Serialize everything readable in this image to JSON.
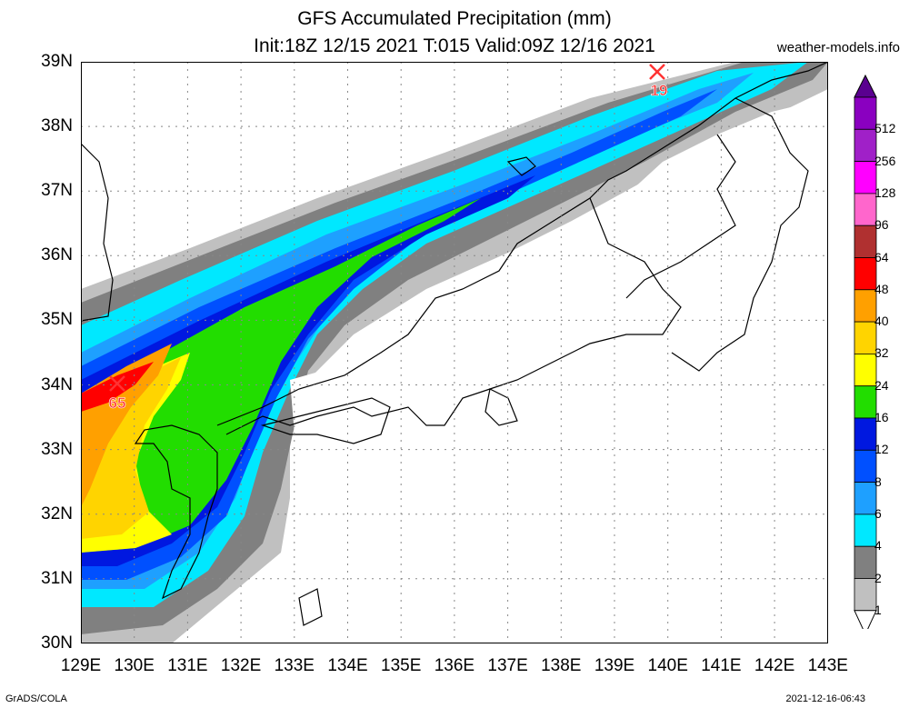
{
  "header": {
    "title_line1": "GFS Accumulated Precipitation (mm)",
    "title_line2": "Init:18Z 12/15 2021 T:015 Valid:09Z 12/16 2021",
    "site": "weather-models.info"
  },
  "map": {
    "lat_labels": [
      "39N",
      "38N",
      "37N",
      "36N",
      "35N",
      "34N",
      "33N",
      "32N",
      "31N",
      "30N"
    ],
    "lon_labels": [
      "129E",
      "130E",
      "131E",
      "132E",
      "133E",
      "134E",
      "135E",
      "136E",
      "137E",
      "138E",
      "139E",
      "140E",
      "141E",
      "142E",
      "143E"
    ],
    "markers": [
      {
        "label": "65",
        "color": "#ff3333"
      },
      {
        "label": "19",
        "color": "#ff3333"
      }
    ]
  },
  "legend": {
    "labels": [
      "512",
      "256",
      "128",
      "96",
      "64",
      "48",
      "40",
      "32",
      "24",
      "16",
      "12",
      "8",
      "6",
      "4",
      "2",
      "1"
    ],
    "colors": [
      "#8a00c0",
      "#a020c8",
      "#ff00ff",
      "#ff66cc",
      "#b03030",
      "#ff0000",
      "#ffa000",
      "#ffd400",
      "#ffff00",
      "#22dd00",
      "#0018e0",
      "#0050ff",
      "#1ea0ff",
      "#00e8ff",
      "#808080",
      "#c0c0c0"
    ]
  },
  "footer": {
    "left": "GrADS/COLA",
    "right": "2021-12-16-06:43"
  }
}
